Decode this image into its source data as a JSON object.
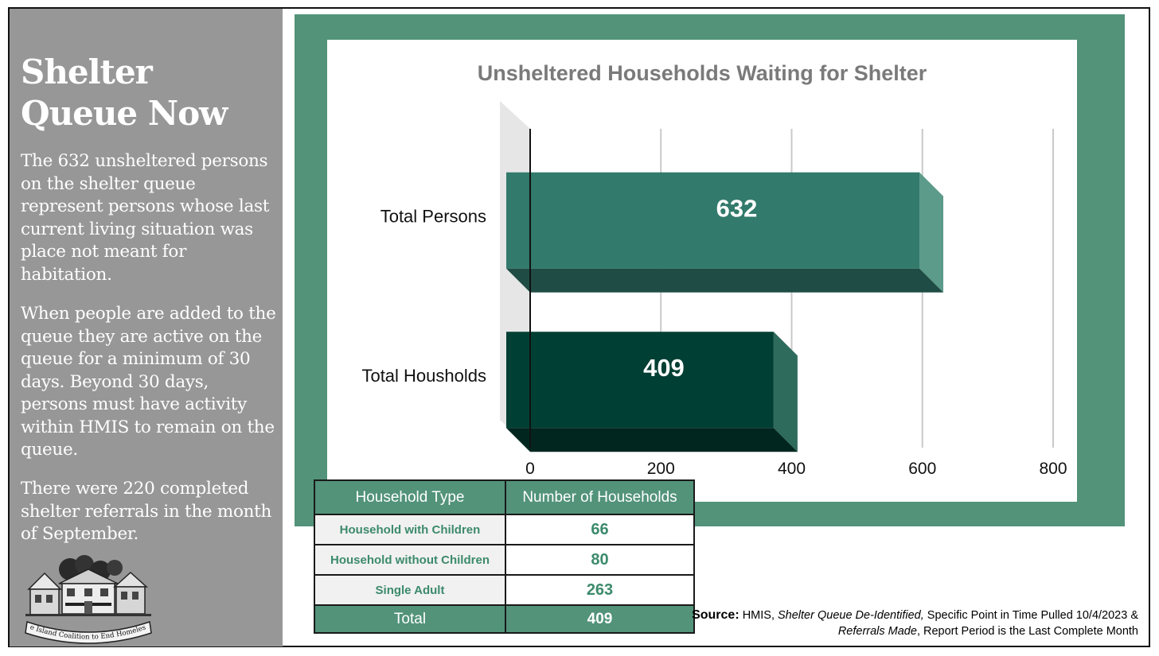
{
  "sidebar": {
    "title": "Shelter Queue Now",
    "paragraphs": [
      "The 632 unsheltered persons on the shelter queue represent persons whose last current living situation was place not meant for habitation.",
      "When people are added to the queue they are active on the queue for a minimum of 30 days. Beyond 30 days, persons must have activity within HMIS to remain on the queue.",
      "There were 220 completed shelter referrals in the month of September."
    ],
    "logo_text": "Rhode Island Coalition to End Homelessness",
    "logo_icon": "houses-illustration-icon"
  },
  "chart_data": {
    "type": "bar",
    "orientation": "horizontal",
    "title": "Unsheltered Households Waiting for Shelter",
    "categories": [
      "Total Persons",
      "Total Housholds"
    ],
    "values": [
      632,
      409
    ],
    "value_labels": [
      "632",
      "409"
    ],
    "xlim": [
      0,
      800
    ],
    "x_ticks": [
      "0",
      "200",
      "400",
      "600",
      "800"
    ],
    "grid": true,
    "style": "3d",
    "colors": [
      "#327a6b",
      "#003f33"
    ]
  },
  "table": {
    "headers": [
      "Household Type",
      "Number of Households"
    ],
    "rows": [
      {
        "label": "Household with Children",
        "value": "66"
      },
      {
        "label": "Household without Children",
        "value": "80"
      },
      {
        "label": "Single Adult",
        "value": "263"
      }
    ],
    "total": {
      "label": "Total",
      "value": "409"
    }
  },
  "source": {
    "label": "Source:",
    "line1_a": "HMIS, ",
    "line1_italic": "Shelter Queue De-Identified,",
    "line1_b": " Specific Point in Time Pulled 10/4/2023 &",
    "line2_italic": "Referrals Made",
    "line2_b": ", Report Period is the Last Complete Month"
  },
  "colors": {
    "sidebar_bg": "#979797",
    "accent_green": "#52937a",
    "text_green": "#3c8a6c"
  }
}
